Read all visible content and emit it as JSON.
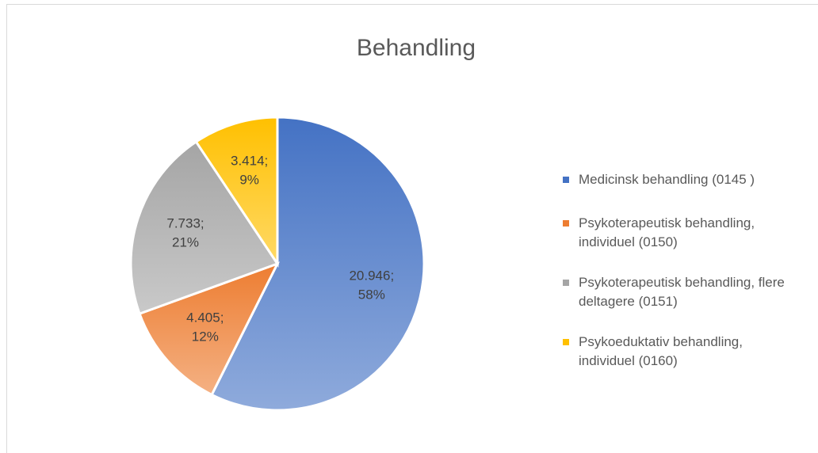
{
  "chart_data": {
    "type": "pie",
    "title": "Behandling",
    "categories": [
      "Medicinsk behandling (0145 )",
      "Psykoterapeutisk behandling, individuel (0150)",
      "Psykoterapeutisk behandling, flere deltagere (0151)",
      "Psykoeduktativ behandling, individuel (0160)"
    ],
    "values": [
      20946,
      4405,
      7733,
      3414
    ],
    "value_labels": [
      "20.946;",
      "4.405;",
      "7.733;",
      "3.414;"
    ],
    "percents": [
      58,
      12,
      21,
      9
    ],
    "percent_labels": [
      "58%",
      "12%",
      "21%",
      "9%"
    ],
    "colors": [
      "#4472c4",
      "#ed7d31",
      "#a5a5a5",
      "#ffc000"
    ],
    "legend": "right"
  }
}
